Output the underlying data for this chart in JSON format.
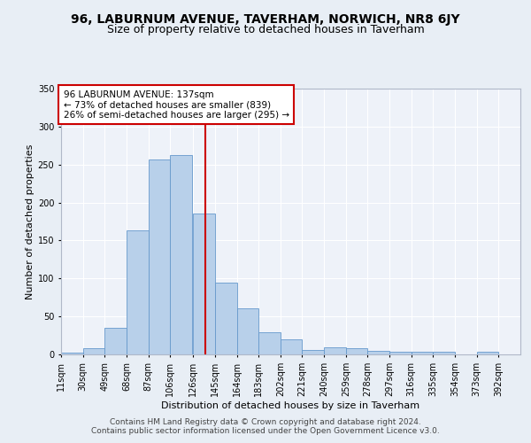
{
  "title1": "96, LABURNUM AVENUE, TAVERHAM, NORWICH, NR8 6JY",
  "title2": "Size of property relative to detached houses in Taverham",
  "xlabel": "Distribution of detached houses by size in Taverham",
  "ylabel": "Number of detached properties",
  "bin_labels": [
    "11sqm",
    "30sqm",
    "49sqm",
    "68sqm",
    "87sqm",
    "106sqm",
    "126sqm",
    "145sqm",
    "164sqm",
    "183sqm",
    "202sqm",
    "221sqm",
    "240sqm",
    "259sqm",
    "278sqm",
    "297sqm",
    "316sqm",
    "335sqm",
    "354sqm",
    "373sqm",
    "392sqm"
  ],
  "bar_heights": [
    2,
    8,
    35,
    163,
    257,
    262,
    185,
    95,
    61,
    29,
    20,
    6,
    9,
    8,
    5,
    4,
    3,
    4,
    0,
    3
  ],
  "bin_edges": [
    11,
    30,
    49,
    68,
    87,
    106,
    126,
    145,
    164,
    183,
    202,
    221,
    240,
    259,
    278,
    297,
    316,
    335,
    354,
    373,
    392
  ],
  "bar_color": "#b8d0ea",
  "bar_edge_color": "#6699cc",
  "bar_edge_width": 0.6,
  "vline_x": 137,
  "vline_color": "#cc0000",
  "annotation_text": "96 LABURNUM AVENUE: 137sqm\n← 73% of detached houses are smaller (839)\n26% of semi-detached houses are larger (295) →",
  "annotation_box_color": "#ffffff",
  "annotation_box_edge": "#cc0000",
  "footer1": "Contains HM Land Registry data © Crown copyright and database right 2024.",
  "footer2": "Contains public sector information licensed under the Open Government Licence v3.0.",
  "ylim": [
    0,
    350
  ],
  "yticks": [
    0,
    50,
    100,
    150,
    200,
    250,
    300,
    350
  ],
  "bg_color": "#e8eef5",
  "plot_bg": "#eef2f9",
  "grid_color": "#ffffff",
  "title1_fontsize": 10,
  "title2_fontsize": 9,
  "axis_label_fontsize": 8,
  "tick_fontsize": 7,
  "annot_fontsize": 7.5,
  "footer_fontsize": 6.5
}
